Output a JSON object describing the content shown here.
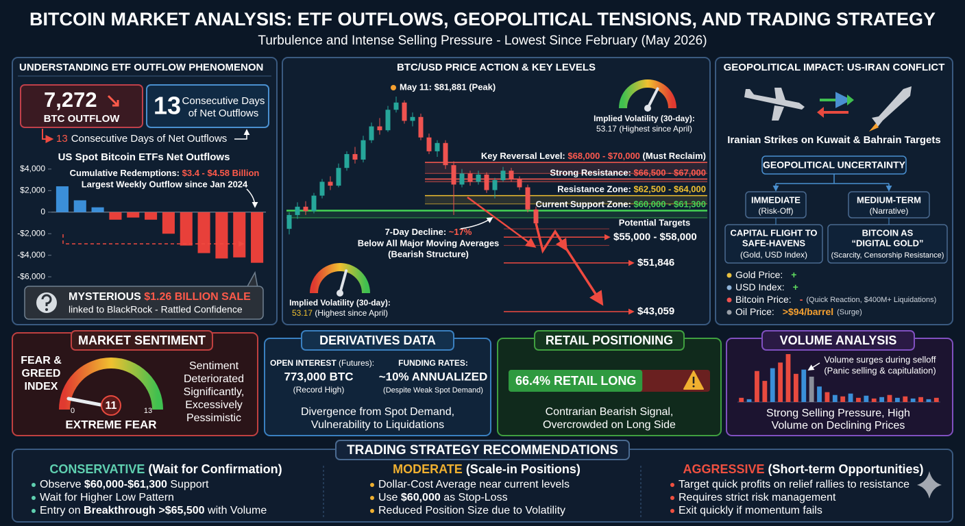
{
  "header": {
    "title": "BITCOIN MARKET ANALYSIS: ETF OUTFLOWS, GEOPOLITICAL TENSIONS, AND TRADING STRATEGY",
    "subtitle": "Turbulence and Intense Selling Pressure - Lowest Since February (May 2026)"
  },
  "etf": {
    "title": "UNDERSTANDING ETF OUTFLOW PHENOMENON",
    "outflow": {
      "value": "7,272",
      "label": "BTC OUTFLOW"
    },
    "streak": {
      "value": "13",
      "label_1": "Consecutive Days",
      "label_2": "of Net Outflows"
    },
    "streak_note": {
      "value": "13",
      "label": "Consecutive Days of Net Outflows"
    },
    "chart": {
      "type": "bar",
      "title": "US Spot Bitcoin ETFs Net Outflows",
      "annotation": {
        "prefix": "Cumulative Redemptions: ",
        "value": "$3.4 - $4.58 Billion",
        "line_2": "Largest Weekly Outflow since Jan 2024"
      },
      "ylim": [
        -6500,
        4500
      ],
      "yticks": [
        {
          "value": 4000,
          "label": "$4,000"
        },
        {
          "value": 2000,
          "label": "$2,000"
        },
        0,
        {
          "value": -2000,
          "label": "-$2,000"
        },
        {
          "value": -4000,
          "label": "-$4,000"
        },
        {
          "value": -6000,
          "label": "-$6,000"
        }
      ],
      "values": [
        2400,
        1100,
        450,
        -700,
        -500,
        -700,
        -2000,
        -3100,
        -3800,
        -4300,
        -4200,
        -4700
      ],
      "colors": {
        "inflow": "#3b8fd9",
        "outflow": "#e8403a"
      }
    },
    "alert": {
      "prefix": "MYSTERIOUS ",
      "value": "$1.26 BILLION SALE",
      "text": "linked to BlackRock - Rattled Confidence"
    }
  },
  "price": {
    "title": "BTC/USD PRICE ACTION & KEY LEVELS",
    "type": "candlestick",
    "candles": {
      "open": [
        58000,
        60500,
        62000,
        61200,
        64000,
        66500,
        65800,
        69000,
        71500,
        70500,
        74000,
        76500,
        75800,
        79500,
        80800,
        77500,
        78200,
        74500,
        72000,
        73500,
        69500,
        66000,
        68000,
        66500,
        67800,
        65000,
        66800,
        68500,
        67000,
        65500,
        61500
      ],
      "high": [
        61000,
        62800,
        63000,
        64500,
        67000,
        67500,
        69800,
        72000,
        72800,
        74800,
        77200,
        78000,
        80200,
        81881,
        81200,
        79000,
        78800,
        75200,
        74000,
        74000,
        70200,
        68800,
        68500,
        68500,
        68200,
        67200,
        69200,
        69000,
        67500,
        66000,
        62000
      ],
      "low": [
        57000,
        59800,
        60500,
        60800,
        63500,
        65000,
        65500,
        68500,
        69800,
        70000,
        73500,
        75000,
        75500,
        79000,
        77000,
        76500,
        74000,
        71500,
        71000,
        68800,
        60500,
        65500,
        65800,
        66000,
        64500,
        63500,
        66500,
        66500,
        65000,
        61000,
        58500
      ],
      "close": [
        60500,
        62000,
        61200,
        64000,
        66500,
        65800,
        69000,
        71500,
        70500,
        74000,
        76500,
        75800,
        79500,
        80800,
        77500,
        78200,
        74500,
        72000,
        73500,
        69500,
        66000,
        68000,
        66500,
        67800,
        65000,
        66800,
        68500,
        67000,
        65500,
        61500,
        59000
      ]
    },
    "colors": {
      "up": "#26a69a",
      "down": "#ef5350"
    },
    "peak": {
      "label": "May 11: $81,881 (Peak)",
      "value": 81881
    },
    "levels": [
      {
        "prefix": "Key Reversal Level: ",
        "value_label": "$68,000 - $70,000",
        "suffix": " (Must Reclaim)",
        "low": 68000,
        "high": 70000,
        "color": "#ff5a4f"
      },
      {
        "prefix": "Strong Resistance: ",
        "value_label": "$66,500 - $67,000",
        "low": 66500,
        "high": 67000,
        "color": "#ff5a4f"
      },
      {
        "prefix": "Resistance Zone: ",
        "value_label": "$62,500 - $64,000",
        "low": 62500,
        "high": 64000,
        "color": "#f0c030"
      },
      {
        "prefix": "Current Support Zone: ",
        "value_label": "$60,000 - $61,300",
        "low": 60000,
        "high": 61300,
        "color": "#45d455"
      }
    ],
    "decline": {
      "prefix": "7-Day Decline: ",
      "value": "~17%",
      "line_2": "Below All Major Moving Averages",
      "line_3": "(Bearish Structure)"
    },
    "targets": {
      "title": "Potential Targets",
      "items": [
        {
          "label": "$55,000 - $58,000",
          "low": 55000,
          "high": 58000
        },
        {
          "label": "$51,846",
          "value": 51846
        },
        {
          "label": "$43,059",
          "value": 43059
        }
      ]
    },
    "volatility": {
      "label": "Implied Volatility (30-day):",
      "value": "53.17",
      "note": " (Highest since April)"
    }
  },
  "geo": {
    "title": "GEOPOLITICAL IMPACT: US-IRAN CONFLICT",
    "headline": "Iranian Strikes on Kuwait & Bahrain Targets",
    "center": "GEOPOLITICAL UNCERTAINTY",
    "immediate": {
      "title": "IMMEDIATE",
      "sub": "(Risk-Off)"
    },
    "medium": {
      "title": "MEDIUM-TERM",
      "sub": "(Narrative)"
    },
    "capital": {
      "line_1": "CAPITAL FLIGHT TO",
      "line_2": "SAFE-HAVENS",
      "sub": "(Gold, USD Index)"
    },
    "digital": {
      "line_1": "BITCOIN AS",
      "line_2": "“DIGITAL GOLD”",
      "sub": "(Scarcity, Censorship Resistance)"
    },
    "indicators": [
      {
        "name": "Gold Price:",
        "effect": "+",
        "color": "#e8c040",
        "effect_color": "#5fdc5f"
      },
      {
        "name": "USD Index:",
        "effect": "+",
        "color": "#8fb4d8",
        "effect_color": "#5fdc5f"
      },
      {
        "name": "Bitcoin Price:",
        "effect": "-",
        "note": "(Quick Reaction, $400M+ Liquidations)",
        "color": "#ef5350",
        "effect_color": "#ff6050"
      },
      {
        "name": "Oil Price:",
        "effect": ">$94/barrel",
        "note": "(Surge)",
        "color": "#9aa0a8",
        "effect_color": "#f5a030"
      }
    ]
  },
  "sentiment": {
    "title": "MARKET SENTIMENT",
    "index_label": [
      "FEAR &",
      "GREED",
      "INDEX"
    ],
    "value": 11,
    "min_label": 0,
    "max_label": 13,
    "reading": "EXTREME FEAR",
    "note": [
      "Sentiment",
      "Deteriorated",
      "Significantly,",
      "Excessively",
      "Pessimistic"
    ]
  },
  "derivatives": {
    "title": "DERIVATIVES DATA",
    "open_interest": {
      "label": "OPEN INTEREST",
      "label_note": " (Futures):",
      "value": "773,000 BTC",
      "note": "(Record High)"
    },
    "funding": {
      "label": "FUNDING RATES:",
      "value": "~10% ANNUALIZED",
      "note": "(Despite Weak Spot Demand)"
    },
    "summary": [
      "Divergence from Spot Demand,",
      "Vulnerability to Liquidations"
    ]
  },
  "retail": {
    "title": "RETAIL POSITIONING",
    "long_share": 66.4,
    "long_label": "66.4% RETAIL LONG",
    "summary": [
      "Contrarian Bearish Signal,",
      "Overcrowded on Long Side"
    ]
  },
  "volume": {
    "title": "VOLUME ANALYSIS",
    "note": [
      "Volume surges during selloff",
      "(Panic selling & capitulation)"
    ],
    "summary": [
      "Strong Selling Pressure, High",
      "Volume on Declining Prices"
    ],
    "values": [
      6,
      4,
      44,
      30,
      48,
      56,
      68,
      40,
      46,
      36,
      22,
      14,
      10,
      8,
      12,
      6,
      9,
      5,
      7,
      10,
      6,
      8,
      5,
      7,
      4,
      6
    ],
    "colors": [
      "#e84a3f",
      "#3a8fd8",
      "#e84a3f",
      "#e84a3f",
      "#3a8fd8",
      "#e84a3f",
      "#e84a3f",
      "#e84a3f",
      "#3a8fd8",
      "#8a8f9a",
      "#3a8fd8",
      "#e84a3f",
      "#3a8fd8",
      "#e84a3f",
      "#3a8fd8",
      "#e84a3f",
      "#3a8fd8",
      "#e84a3f",
      "#3a8fd8",
      "#e84a3f",
      "#3a8fd8",
      "#e84a3f",
      "#3a8fd8",
      "#e84a3f",
      "#3a8fd8",
      "#e84a3f"
    ]
  },
  "strategy": {
    "title": "TRADING STRATEGY RECOMMENDATIONS",
    "columns": [
      {
        "name": "CONSERVATIVE",
        "qualifier": " (Wait for Confirmation)",
        "color": "#5fd0b0",
        "items": [
          [
            "Observe ",
            "$60,000-$61,300",
            " Support"
          ],
          [
            "Wait for Higher Low Pattern"
          ],
          [
            "Entry on ",
            "Breakthrough >$65,500",
            " with Volume"
          ]
        ]
      },
      {
        "name": "MODERATE",
        "qualifier": " (Scale-in Positions)",
        "color": "#f0b030",
        "items": [
          [
            "Dollar-Cost Average near current levels"
          ],
          [
            "Use ",
            "$60,000",
            " as Stop-Loss"
          ],
          [
            "Reduced Position Size due to Volatility"
          ]
        ]
      },
      {
        "name": "AGGRESSIVE",
        "qualifier": " (Short-term Opportunities)",
        "color": "#f05040",
        "items": [
          [
            "Target quick profits on relief rallies to resistance"
          ],
          [
            "Requires strict risk management"
          ],
          [
            "Exit quickly if momentum fails"
          ]
        ]
      }
    ]
  }
}
